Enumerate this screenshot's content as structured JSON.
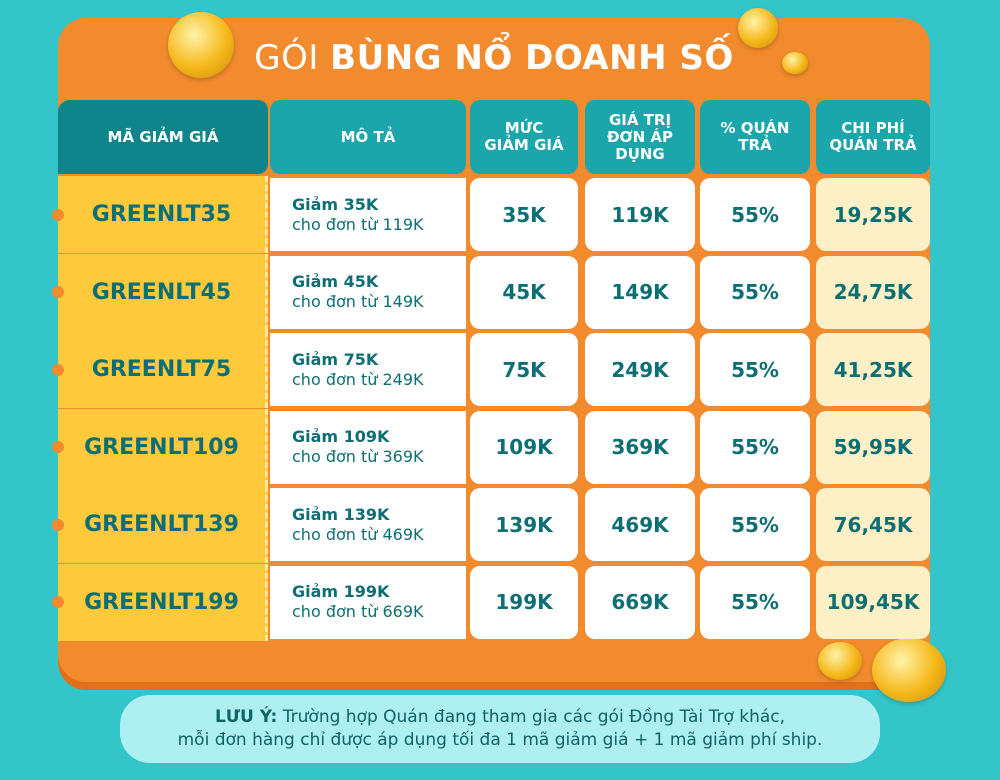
{
  "title": {
    "prefix": "GÓI",
    "emphasis": "BÙNG NỔ DOANH SỐ"
  },
  "table": {
    "headers": [
      "MÃ GIẢM GIÁ",
      "MÔ TẢ",
      "MỨC GIẢM GIÁ",
      "GIÁ TRỊ ĐƠN ÁP DỤNG",
      "% QUÁN TRẢ",
      "CHI PHÍ QUÁN TRẢ"
    ],
    "rows": [
      {
        "code": "GREENLT35",
        "desc": [
          "Giảm 35K",
          "cho đơn từ 119K"
        ],
        "discount": "35K",
        "min_order": "119K",
        "share": "55%",
        "cost": "19,25K"
      },
      {
        "code": "GREENLT45",
        "desc": [
          "Giảm 45K",
          "cho đơn từ 149K"
        ],
        "discount": "45K",
        "min_order": "149K",
        "share": "55%",
        "cost": "24,75K"
      },
      {
        "code": "GREENLT75",
        "desc": [
          "Giảm 75K",
          "cho đơn từ 249K"
        ],
        "discount": "75K",
        "min_order": "249K",
        "share": "55%",
        "cost": "41,25K"
      },
      {
        "code": "GREENLT109",
        "desc": [
          "Giảm 109K",
          "cho đơn từ 369K"
        ],
        "discount": "109K",
        "min_order": "369K",
        "share": "55%",
        "cost": "59,95K"
      },
      {
        "code": "GREENLT139",
        "desc": [
          "Giảm 139K",
          "cho đơn từ 469K"
        ],
        "discount": "139K",
        "min_order": "469K",
        "share": "55%",
        "cost": "76,45K"
      },
      {
        "code": "GREENLT199",
        "desc": [
          "Giảm 199K",
          "cho đơn từ 669K"
        ],
        "discount": "199K",
        "min_order": "669K",
        "share": "55%",
        "cost": "109,45K"
      }
    ]
  },
  "note": {
    "label": "LƯU Ý:",
    "lines": [
      "Trường hợp Quán đang tham gia các gói Đồng Tài Trợ khác,",
      "mỗi đơn hàng chỉ được áp dụng tối đa 1 mã giảm giá + 1 mã giảm phí ship."
    ]
  }
}
